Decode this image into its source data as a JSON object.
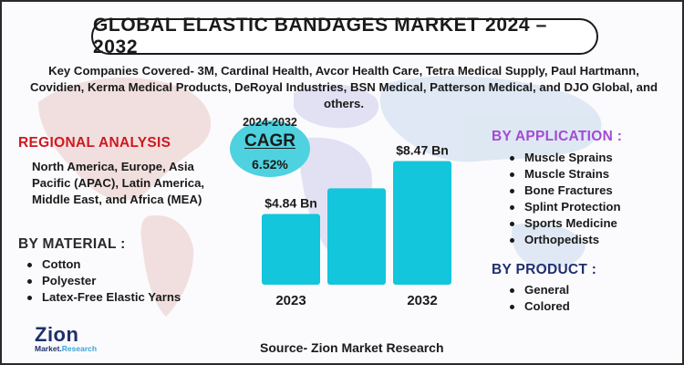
{
  "title": "GLOBAL ELASTIC BANDAGES MARKET 2024 – 2032",
  "companies": {
    "text": "Key Companies Covered- 3M, Cardinal Health, Avcor Health Care, Tetra Medical Supply, Paul Hartmann, Covidien, Kerma Medical Products, DeRoyal Industries, BSN Medical, Patterson Medical, and DJO Global, and others."
  },
  "regional": {
    "title": "REGIONAL ANALYSIS",
    "text": "North America, Europe, Asia Pacific (APAC), Latin America, Middle East, and Africa (MEA)"
  },
  "material": {
    "title": "BY MATERIAL :",
    "items": [
      "Cotton",
      "Polyester",
      "Latex-Free Elastic Yarns"
    ]
  },
  "application": {
    "title": "BY APPLICATION :",
    "items": [
      "Muscle Sprains",
      "Muscle Strains",
      "Bone Fractures",
      "Splint Protection",
      "Sports Medicine",
      "Orthopedists"
    ]
  },
  "product": {
    "title": "BY PRODUCT :",
    "items": [
      "General",
      "Colored"
    ]
  },
  "cagr": {
    "period": "2024-2032",
    "label": "CAGR",
    "value": "6.52%"
  },
  "chart_data": {
    "type": "bar",
    "categories": [
      "2023",
      "",
      "2032"
    ],
    "values": [
      4.84,
      6.6,
      8.47
    ],
    "data_labels": [
      "$4.84 Bn",
      "",
      "$8.47 Bn"
    ],
    "ylim": [
      0,
      10
    ],
    "bar_color": "#13c6dc",
    "grid": false
  },
  "logo": {
    "name": "Zion",
    "sub_left": "Market.",
    "sub_right": "Research"
  },
  "source": "Source- Zion Market Research",
  "colors": {
    "accent_red": "#d0181f",
    "accent_purple": "#a34ad6",
    "accent_navy": "#1f3070",
    "bar": "#13c6dc",
    "bubble": "#4fd2e0"
  }
}
